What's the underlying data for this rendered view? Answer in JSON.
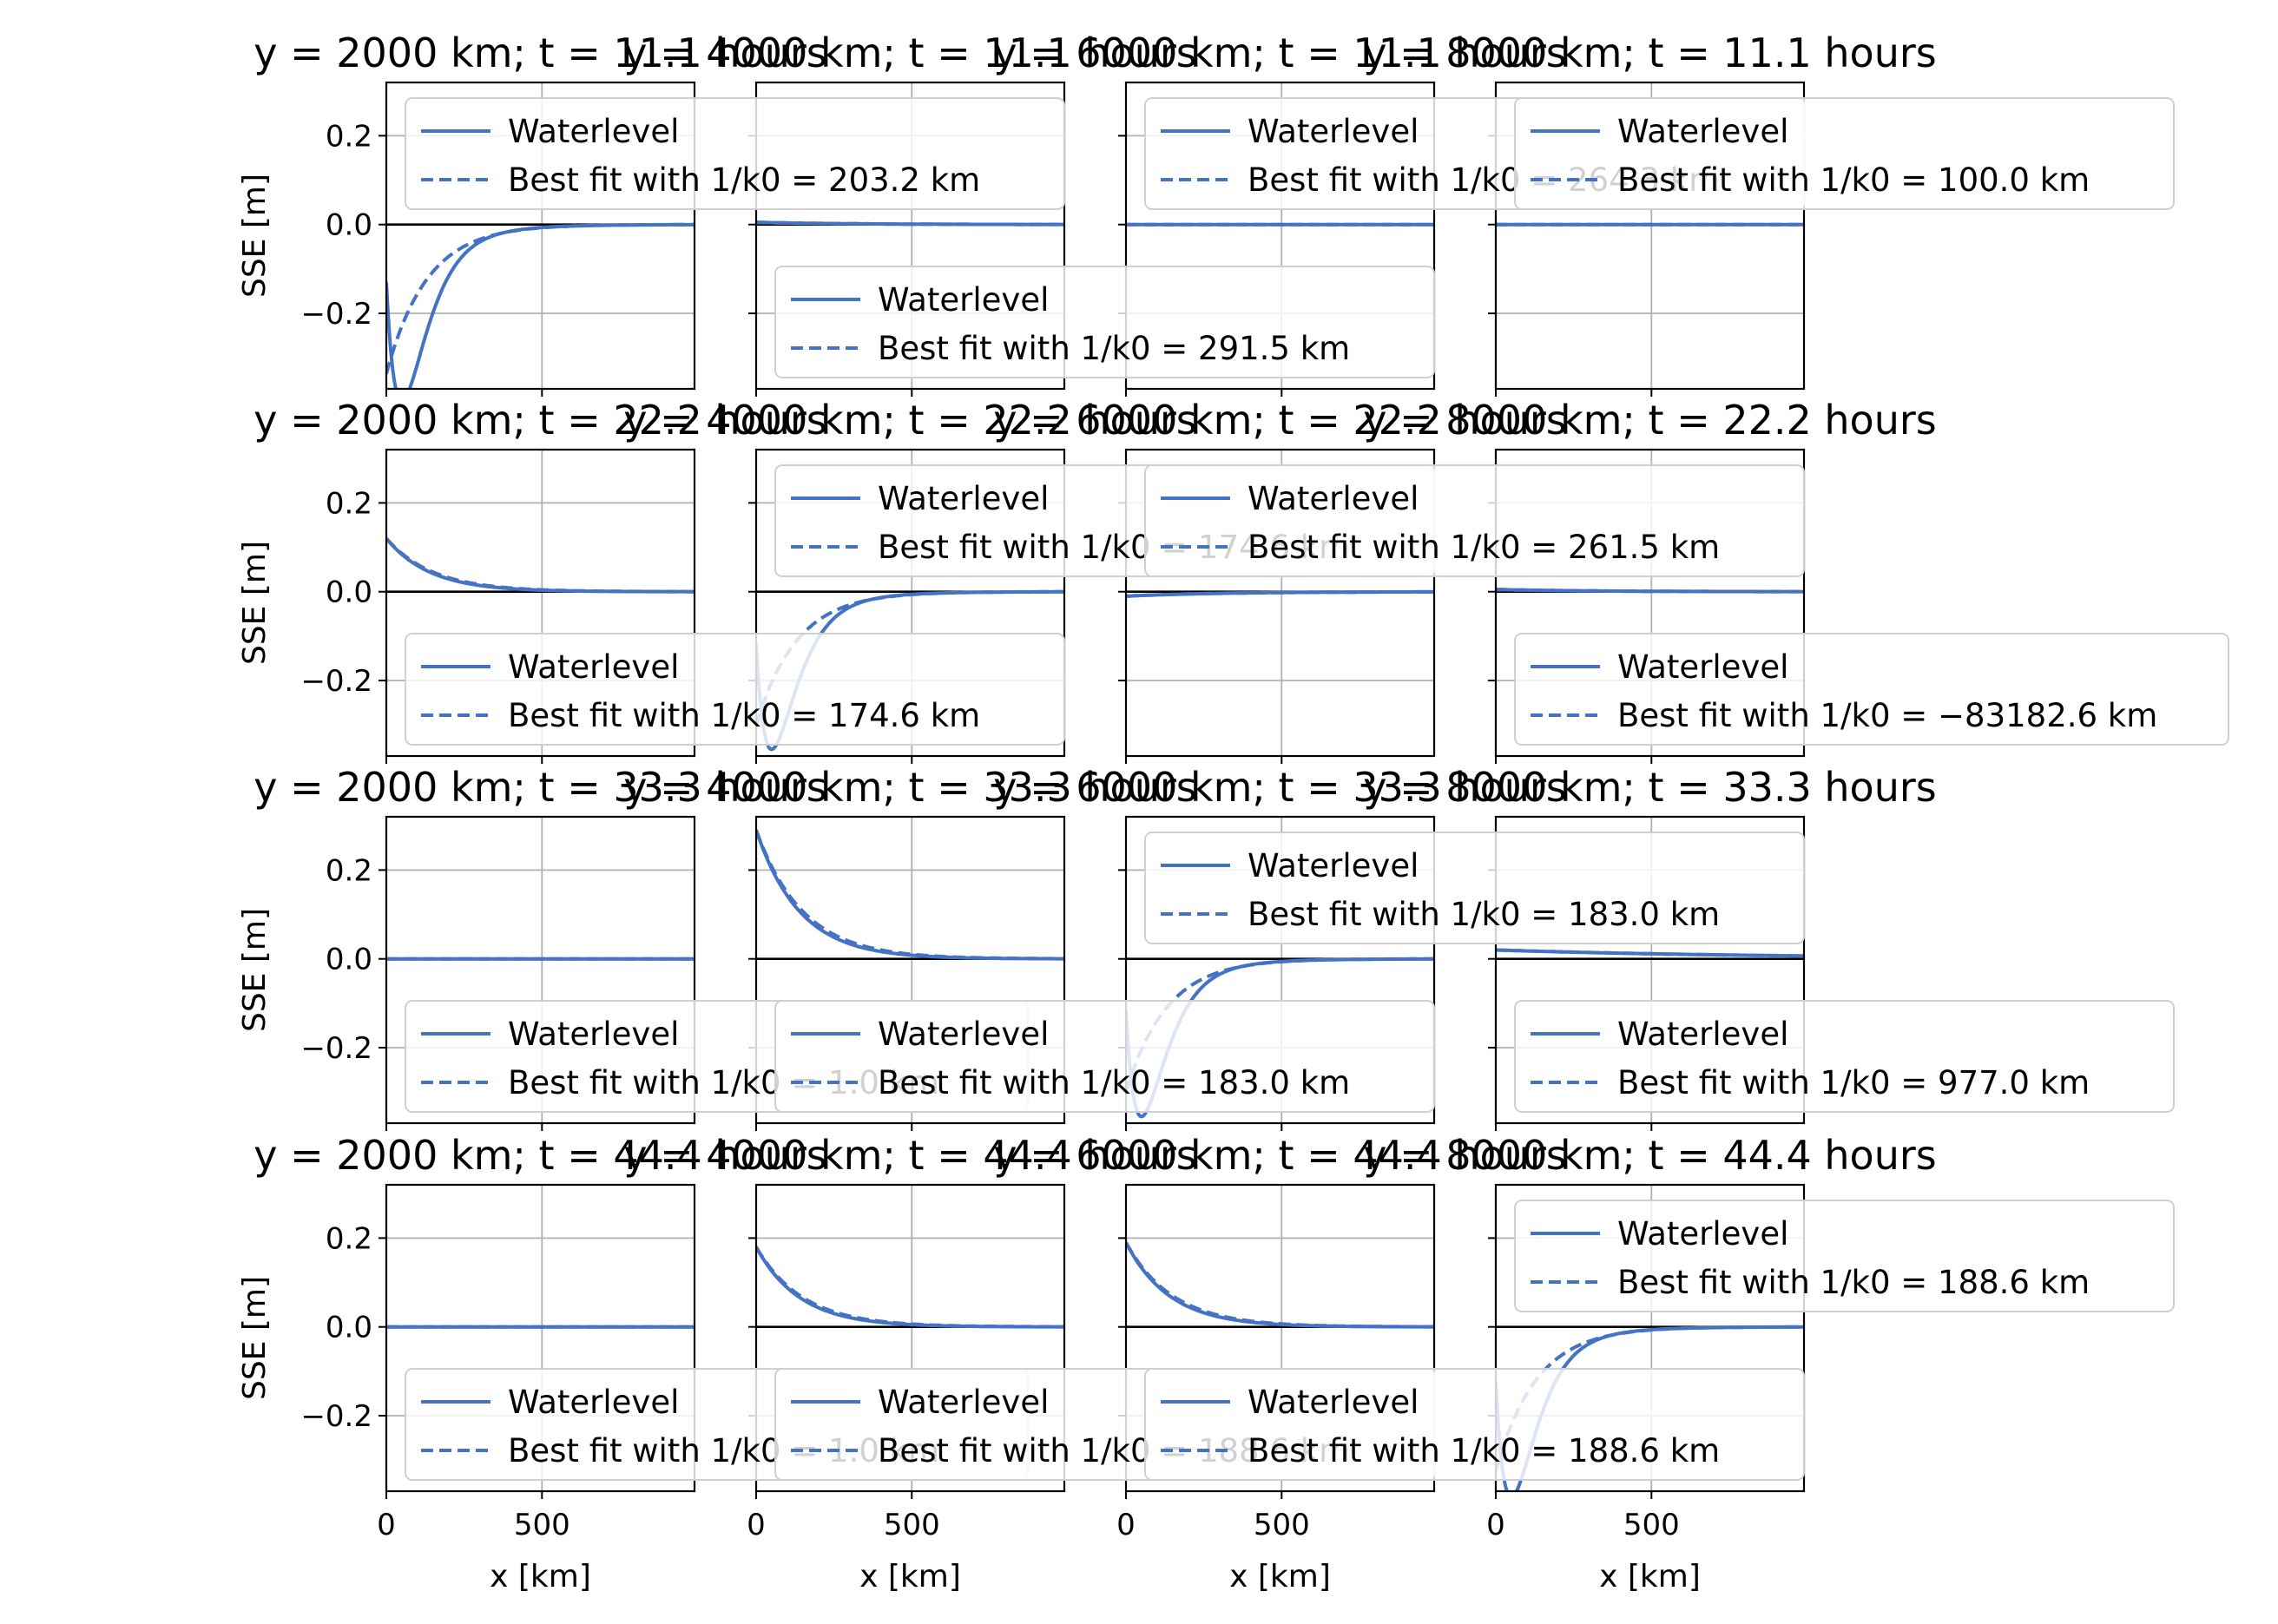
{
  "figure": {
    "xlabel": "x [km]",
    "ylabel": "SSE [m]",
    "x_ticks": [
      "0",
      "500"
    ],
    "y_ticks": [
      "0.2",
      "0.0",
      "−0.2"
    ],
    "colors": {
      "line": "#4472c4",
      "zero_line": "#000000",
      "grid": "#b0b0b0"
    }
  },
  "chart_data": [
    {
      "type": "line",
      "row": 0,
      "col": 0,
      "title": "y = 2000 km; t = 11.1 hours",
      "xlim": [
        0,
        990
      ],
      "ylim": [
        -0.37,
        0.32
      ],
      "grid": true,
      "profile": "dip",
      "amp": -0.28,
      "legend": {
        "entries": [
          "Waterlevel",
          "Best fit with 1/k0 = 203.2 km"
        ],
        "position": "upper"
      }
    },
    {
      "type": "line",
      "row": 0,
      "col": 1,
      "title": "y = 4000 km; t = 11.1 hours",
      "xlim": [
        0,
        990
      ],
      "ylim": [
        -0.37,
        0.32
      ],
      "grid": true,
      "profile": "flat",
      "amp": 0.005,
      "legend": {
        "entries": [
          "Waterlevel",
          "Best fit with 1/k0 = 291.5 km"
        ],
        "position": "lower"
      }
    },
    {
      "type": "line",
      "row": 0,
      "col": 2,
      "title": "y = 6000 km; t = 11.1 hours",
      "xlim": [
        0,
        990
      ],
      "ylim": [
        -0.37,
        0.32
      ],
      "grid": true,
      "profile": "flat",
      "amp": 0.0,
      "legend": {
        "entries": [
          "Waterlevel",
          "Best fit with 1/k0 = 264.3 km"
        ],
        "position": "upper"
      }
    },
    {
      "type": "line",
      "row": 0,
      "col": 3,
      "title": "y = 8000 km; t = 11.1 hours",
      "xlim": [
        0,
        990
      ],
      "ylim": [
        -0.37,
        0.32
      ],
      "grid": true,
      "profile": "flat",
      "amp": 0.0,
      "legend": {
        "entries": [
          "Waterlevel",
          "Best fit with 1/k0 = 100.0 km"
        ],
        "position": "upper"
      }
    },
    {
      "type": "line",
      "row": 1,
      "col": 0,
      "title": "y = 2000 km; t = 22.2 hours",
      "xlim": [
        0,
        990
      ],
      "ylim": [
        -0.37,
        0.32
      ],
      "grid": true,
      "profile": "decay",
      "amp": 0.12,
      "legend": {
        "entries": [
          "Waterlevel",
          "Best fit with 1/k0 = 174.6 km"
        ],
        "position": "lower"
      }
    },
    {
      "type": "line",
      "row": 1,
      "col": 1,
      "title": "y = 4000 km; t = 22.2 hours",
      "xlim": [
        0,
        990
      ],
      "ylim": [
        -0.37,
        0.32
      ],
      "grid": true,
      "profile": "dip",
      "amp": -0.25,
      "legend": {
        "entries": [
          "Waterlevel",
          "Best fit with 1/k0 = 174.6 km"
        ],
        "position": "upper"
      }
    },
    {
      "type": "line",
      "row": 1,
      "col": 2,
      "title": "y = 6000 km; t = 22.2 hours",
      "xlim": [
        0,
        990
      ],
      "ylim": [
        -0.37,
        0.32
      ],
      "grid": true,
      "profile": "flat",
      "amp": -0.01,
      "legend": {
        "entries": [
          "Waterlevel",
          "Best fit with 1/k0 = 261.5 km"
        ],
        "position": "upper"
      }
    },
    {
      "type": "line",
      "row": 1,
      "col": 3,
      "title": "y = 8000 km; t = 22.2 hours",
      "xlim": [
        0,
        990
      ],
      "ylim": [
        -0.37,
        0.32
      ],
      "grid": true,
      "profile": "flat",
      "amp": 0.005,
      "legend": {
        "entries": [
          "Waterlevel",
          "Best fit with 1/k0 = −83182.6 km"
        ],
        "position": "lower"
      }
    },
    {
      "type": "line",
      "row": 2,
      "col": 0,
      "title": "y = 2000 km; t = 33.3 hours",
      "xlim": [
        0,
        990
      ],
      "ylim": [
        -0.37,
        0.32
      ],
      "grid": true,
      "profile": "flat",
      "amp": 0.0,
      "legend": {
        "entries": [
          "Waterlevel",
          "Best fit with 1/k0 = 1.0 km"
        ],
        "position": "lower"
      }
    },
    {
      "type": "line",
      "row": 2,
      "col": 1,
      "title": "y = 4000 km; t = 33.3 hours",
      "xlim": [
        0,
        990
      ],
      "ylim": [
        -0.37,
        0.32
      ],
      "grid": true,
      "profile": "decay",
      "amp": 0.29,
      "legend": {
        "entries": [
          "Waterlevel",
          "Best fit with 1/k0 = 183.0 km"
        ],
        "position": "lower"
      }
    },
    {
      "type": "line",
      "row": 2,
      "col": 2,
      "title": "y = 6000 km; t = 33.3 hours",
      "xlim": [
        0,
        990
      ],
      "ylim": [
        -0.37,
        0.32
      ],
      "grid": true,
      "profile": "dip",
      "amp": -0.25,
      "legend": {
        "entries": [
          "Waterlevel",
          "Best fit with 1/k0 = 183.0 km"
        ],
        "position": "upper"
      }
    },
    {
      "type": "line",
      "row": 2,
      "col": 3,
      "title": "y = 8000 km; t = 33.3 hours",
      "xlim": [
        0,
        990
      ],
      "ylim": [
        -0.37,
        0.32
      ],
      "grid": true,
      "profile": "slow",
      "amp": 0.02,
      "legend": {
        "entries": [
          "Waterlevel",
          "Best fit with 1/k0 = 977.0 km"
        ],
        "position": "lower"
      }
    },
    {
      "type": "line",
      "row": 3,
      "col": 0,
      "title": "y = 2000 km; t = 44.4 hours",
      "xlim": [
        0,
        990
      ],
      "ylim": [
        -0.37,
        0.32
      ],
      "grid": true,
      "profile": "flat",
      "amp": 0.0,
      "legend": {
        "entries": [
          "Waterlevel",
          "Best fit with 1/k0 = 1.0 km"
        ],
        "position": "lower"
      }
    },
    {
      "type": "line",
      "row": 3,
      "col": 1,
      "title": "y = 4000 km; t = 44.4 hours",
      "xlim": [
        0,
        990
      ],
      "ylim": [
        -0.37,
        0.32
      ],
      "grid": true,
      "profile": "decay",
      "amp": 0.18,
      "legend": {
        "entries": [
          "Waterlevel",
          "Best fit with 1/k0 = 188.6 km"
        ],
        "position": "lower"
      }
    },
    {
      "type": "line",
      "row": 3,
      "col": 2,
      "title": "y = 6000 km; t = 44.4 hours",
      "xlim": [
        0,
        990
      ],
      "ylim": [
        -0.37,
        0.32
      ],
      "grid": true,
      "profile": "decay",
      "amp": 0.19,
      "legend": {
        "entries": [
          "Waterlevel",
          "Best fit with 1/k0 = 188.6 km"
        ],
        "position": "lower"
      }
    },
    {
      "type": "line",
      "row": 3,
      "col": 3,
      "title": "y = 8000 km; t = 44.4 hours",
      "xlim": [
        0,
        990
      ],
      "ylim": [
        -0.37,
        0.32
      ],
      "grid": true,
      "profile": "dip",
      "amp": -0.27,
      "legend": {
        "entries": [
          "Waterlevel",
          "Best fit with 1/k0 = 188.6 km"
        ],
        "position": "upper"
      }
    }
  ]
}
